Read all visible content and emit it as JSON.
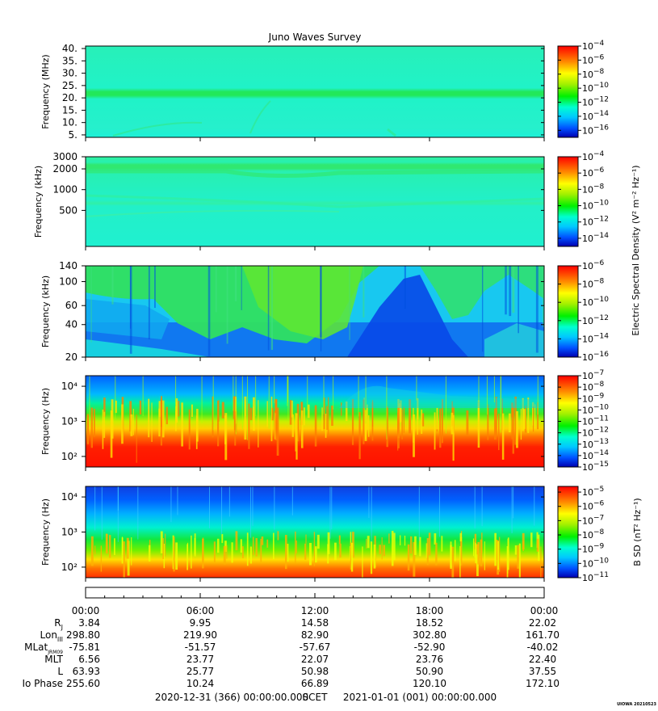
{
  "chart_data": {
    "type": "heatmap",
    "title": "Juno Waves Survey",
    "credit": "UIOWA 20210523",
    "panels": [
      {
        "id": "waves-hf",
        "ylabel": "Frequency (MHz)",
        "yscale": "linear",
        "ylim": [
          4,
          41
        ],
        "yticks": [
          5,
          10,
          15,
          20,
          25,
          30,
          35,
          40
        ],
        "ytick_labels": [
          "5.",
          "10.",
          "15.",
          "20.",
          "25.",
          "30.",
          "35.",
          "40."
        ],
        "colorbar_ticks": [
          -4,
          -6,
          -8,
          -10,
          -12,
          -14,
          -16
        ],
        "colorbar_range": [
          -17,
          -4
        ]
      },
      {
        "id": "waves-mf",
        "ylabel": "Frequency (kHz)",
        "yscale": "log",
        "ylim": [
          150,
          3000
        ],
        "yticks": [
          500,
          1000,
          2000,
          3000
        ],
        "ytick_labels": [
          "500",
          "1000",
          "2000",
          "3000"
        ],
        "colorbar_ticks": [
          -4,
          -6,
          -8,
          -10,
          -12,
          -14
        ],
        "colorbar_range": [
          -15,
          -4
        ],
        "colorbar_label": "Electric Spectral Density (V² m⁻² Hz⁻¹)"
      },
      {
        "id": "waves-lf",
        "ylabel": "Frequency (kHz)",
        "yscale": "log",
        "ylim": [
          20,
          140
        ],
        "yticks": [
          20,
          40,
          60,
          100,
          140
        ],
        "ytick_labels": [
          "20",
          "40",
          "60",
          "100",
          "140"
        ],
        "colorbar_ticks": [
          -6,
          -8,
          -10,
          -12,
          -14,
          -16
        ],
        "colorbar_range": [
          -16,
          -6
        ]
      },
      {
        "id": "e-field-lo",
        "ylabel": "Frequency (Hz)",
        "yscale": "log",
        "ylim": [
          50,
          20000
        ],
        "yticks": [
          100,
          1000,
          10000
        ],
        "ytick_labels": [
          "10²",
          "10³",
          "10⁴"
        ],
        "colorbar_ticks": [
          -7,
          -8,
          -9,
          -10,
          -11,
          -12,
          -13,
          -14,
          -15
        ],
        "colorbar_range": [
          -15,
          -7
        ]
      },
      {
        "id": "b-field",
        "ylabel": "Frequency (Hz)",
        "yscale": "log",
        "ylim": [
          50,
          20000
        ],
        "yticks": [
          100,
          1000,
          10000
        ],
        "ytick_labels": [
          "10²",
          "10³",
          "10⁴"
        ],
        "colorbar_ticks": [
          -5,
          -6,
          -7,
          -8,
          -9,
          -10,
          -11
        ],
        "colorbar_range": [
          -11,
          -4.6
        ],
        "colorbar_label": "B SD (nT² Hz⁻¹)"
      }
    ],
    "colorbar_tick_prefix": "10",
    "xaxis": {
      "tick_labels": [
        "00:00",
        "06:00",
        "12:00",
        "18:00",
        "00:00"
      ],
      "ephemeris": [
        {
          "label": "R",
          "sub": "J",
          "values": [
            "3.84",
            "9.95",
            "14.58",
            "18.52",
            "22.02"
          ]
        },
        {
          "label": "Lon",
          "sub": "III",
          "values": [
            "298.80",
            "219.90",
            "82.90",
            "302.80",
            "161.70"
          ]
        },
        {
          "label": "MLat",
          "sub": "JRM09",
          "values": [
            "-75.81",
            "-51.57",
            "-57.67",
            "-52.90",
            "-40.02"
          ]
        },
        {
          "label": "MLT",
          "sub": "",
          "values": [
            "6.56",
            "23.77",
            "22.07",
            "23.76",
            "22.40"
          ]
        },
        {
          "label": "L",
          "sub": "",
          "values": [
            "63.93",
            "25.77",
            "50.98",
            "50.90",
            "37.55"
          ]
        },
        {
          "label": "Io Phase",
          "sub": "",
          "values": [
            "255.60",
            "10.24",
            "66.89",
            "120.10",
            "172.10"
          ]
        }
      ],
      "start": "2020-12-31 (366) 00:00:00.000",
      "center": "SCET",
      "end": "2021-01-01 (001) 00:00:00.000"
    }
  }
}
